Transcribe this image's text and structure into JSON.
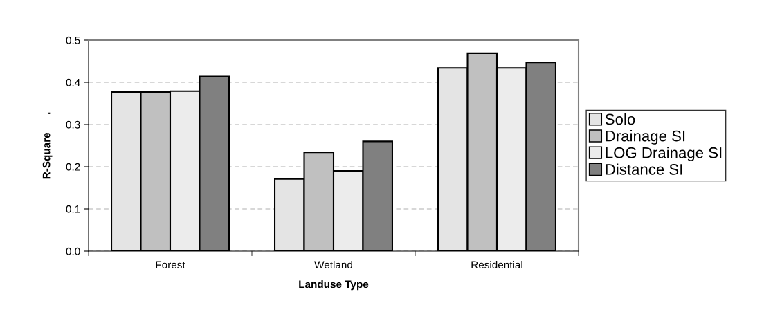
{
  "chart_data": {
    "type": "bar",
    "xlabel": "Landuse Type",
    "ylabel": "R-Square      .",
    "categories": [
      "Forest",
      "Wetland",
      "Residential"
    ],
    "series": [
      {
        "name": "Solo",
        "color": "#e4e4e4",
        "values": [
          0.377,
          0.171,
          0.434
        ]
      },
      {
        "name": "Drainage SI",
        "color": "#c0c0c0",
        "values": [
          0.377,
          0.234,
          0.469
        ]
      },
      {
        "name": "LOG Drainage SI",
        "color": "#ececec",
        "values": [
          0.379,
          0.19,
          0.434
        ]
      },
      {
        "name": "Distance SI",
        "color": "#808080",
        "values": [
          0.414,
          0.26,
          0.447
        ]
      }
    ],
    "ylim": [
      0,
      0.5
    ],
    "yticks": [
      {
        "value": 0,
        "label": "0.0"
      },
      {
        "value": 0.1,
        "label": "0.1"
      },
      {
        "value": 0.2,
        "label": "0.2"
      },
      {
        "value": 0.3,
        "label": "0.3"
      },
      {
        "value": 0.4,
        "label": "0.4"
      },
      {
        "value": 0.5,
        "label": "0.5"
      }
    ],
    "grid": "y",
    "legend": "right"
  }
}
